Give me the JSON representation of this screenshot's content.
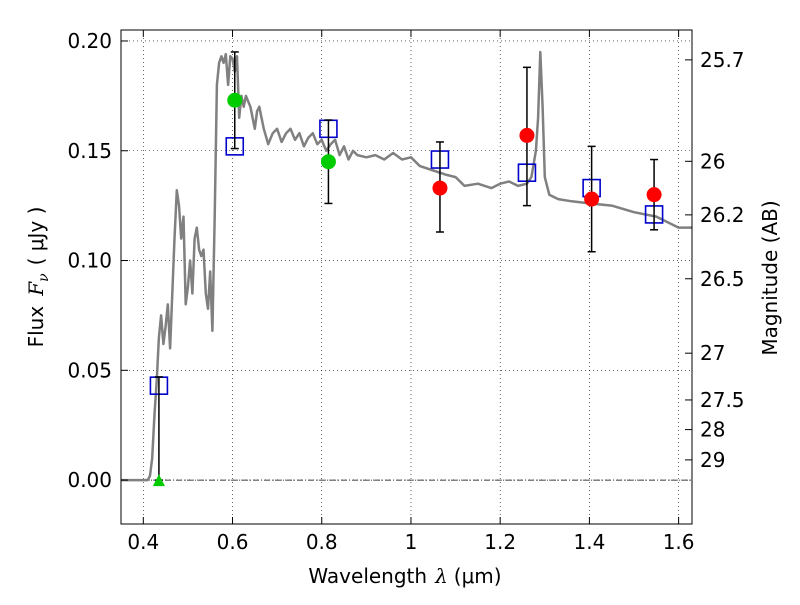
{
  "chart_data": {
    "type": "scatter",
    "xlabel": {
      "text": "Wavelength",
      "symbol": "λ",
      "units": "(μm)"
    },
    "ylabel": {
      "text": "Flux",
      "symbol": "F",
      "subscript": "ν",
      "units": "( μJy )"
    },
    "y2label": "Magnitude (AB)",
    "xlim": [
      0.35,
      1.63
    ],
    "ylim": [
      -0.02,
      0.205
    ],
    "grid": true,
    "x_ticks": [
      0.4,
      0.6,
      0.8,
      1.0,
      1.2,
      1.4,
      1.6
    ],
    "x_tick_labels": [
      "0.4",
      "0.6",
      "0.8",
      "1",
      "1.2",
      "1.4",
      "1.6"
    ],
    "y_ticks": [
      0.0,
      0.05,
      0.1,
      0.15,
      0.2
    ],
    "y_tick_labels": [
      "0.00",
      "0.05",
      "0.10",
      "0.15",
      "0.20"
    ],
    "y2_ticks": [
      {
        "label": "25.7",
        "flux": 0.1914
      },
      {
        "label": "26",
        "flux": 0.1452
      },
      {
        "label": "26.2",
        "flux": 0.1208
      },
      {
        "label": "26.5",
        "flux": 0.0917
      },
      {
        "label": "27",
        "flux": 0.0578
      },
      {
        "label": "27.5",
        "flux": 0.0365
      },
      {
        "label": "28",
        "flux": 0.023
      },
      {
        "label": "29",
        "flux": 0.0092
      }
    ],
    "series": [
      {
        "type": "line",
        "color": "#808080",
        "x": [
          0.35,
          0.41,
          0.415,
          0.42,
          0.425,
          0.43,
          0.435,
          0.44,
          0.445,
          0.45,
          0.455,
          0.46,
          0.465,
          0.47,
          0.475,
          0.48,
          0.485,
          0.49,
          0.495,
          0.5,
          0.505,
          0.51,
          0.515,
          0.52,
          0.525,
          0.53,
          0.535,
          0.54,
          0.545,
          0.55,
          0.555,
          0.56,
          0.565,
          0.57,
          0.575,
          0.58,
          0.585,
          0.59,
          0.595,
          0.6,
          0.605,
          0.61,
          0.615,
          0.62,
          0.625,
          0.63,
          0.64,
          0.65,
          0.655,
          0.66,
          0.665,
          0.67,
          0.68,
          0.69,
          0.7,
          0.71,
          0.72,
          0.73,
          0.74,
          0.75,
          0.76,
          0.77,
          0.78,
          0.79,
          0.8,
          0.81,
          0.82,
          0.83,
          0.84,
          0.85,
          0.86,
          0.87,
          0.88,
          0.9,
          0.92,
          0.94,
          0.96,
          0.98,
          1.0,
          1.02,
          1.05,
          1.08,
          1.1,
          1.12,
          1.15,
          1.18,
          1.2,
          1.22,
          1.24,
          1.26,
          1.27,
          1.28,
          1.285,
          1.29,
          1.295,
          1.3,
          1.31,
          1.33,
          1.36,
          1.4,
          1.45,
          1.5,
          1.55,
          1.58,
          1.6,
          1.63
        ],
        "y": [
          0.0,
          0.0,
          0.002,
          0.01,
          0.03,
          0.045,
          0.065,
          0.075,
          0.062,
          0.07,
          0.08,
          0.06,
          0.085,
          0.11,
          0.132,
          0.125,
          0.11,
          0.12,
          0.08,
          0.088,
          0.1,
          0.085,
          0.11,
          0.115,
          0.105,
          0.102,
          0.105,
          0.085,
          0.078,
          0.095,
          0.068,
          0.12,
          0.18,
          0.19,
          0.193,
          0.19,
          0.194,
          0.18,
          0.193,
          0.192,
          0.186,
          0.193,
          0.165,
          0.175,
          0.17,
          0.175,
          0.17,
          0.16,
          0.168,
          0.17,
          0.165,
          0.16,
          0.153,
          0.158,
          0.16,
          0.154,
          0.158,
          0.16,
          0.155,
          0.158,
          0.152,
          0.156,
          0.158,
          0.153,
          0.155,
          0.15,
          0.153,
          0.155,
          0.148,
          0.152,
          0.146,
          0.15,
          0.148,
          0.147,
          0.148,
          0.146,
          0.149,
          0.146,
          0.147,
          0.143,
          0.141,
          0.139,
          0.138,
          0.134,
          0.135,
          0.133,
          0.135,
          0.136,
          0.134,
          0.135,
          0.138,
          0.15,
          0.165,
          0.195,
          0.17,
          0.138,
          0.13,
          0.128,
          0.127,
          0.126,
          0.125,
          0.122,
          0.12,
          0.117,
          0.115,
          0.115
        ]
      },
      {
        "type": "model-squares",
        "color": "#0000cc",
        "x": [
          0.435,
          0.605,
          0.815,
          1.065,
          1.26,
          1.405,
          1.545
        ],
        "y": [
          0.043,
          0.152,
          0.16,
          0.146,
          0.14,
          0.133,
          0.121
        ]
      },
      {
        "type": "errorbars",
        "color": "#000000",
        "x": [
          0.435,
          0.605,
          0.815,
          1.065,
          1.26,
          1.405,
          1.545
        ],
        "y": [
          0.0,
          0.173,
          0.145,
          0.133,
          0.157,
          0.128,
          0.13
        ],
        "lo": [
          0.0,
          0.151,
          0.126,
          0.113,
          0.125,
          0.104,
          0.114
        ],
        "hi": [
          0.047,
          0.195,
          0.164,
          0.154,
          0.188,
          0.152,
          0.146
        ]
      },
      {
        "type": "points",
        "marker": "circle",
        "color": "#00cc00",
        "x": [
          0.605,
          0.815
        ],
        "y": [
          0.173,
          0.145
        ]
      },
      {
        "type": "points",
        "marker": "circle",
        "color": "#ff0000",
        "x": [
          1.065,
          1.26,
          1.405,
          1.545
        ],
        "y": [
          0.133,
          0.157,
          0.128,
          0.13
        ]
      },
      {
        "type": "upper-limit",
        "marker": "triangle",
        "color": "#00cc00",
        "x": [
          0.435
        ],
        "y": [
          0.0
        ]
      }
    ]
  }
}
